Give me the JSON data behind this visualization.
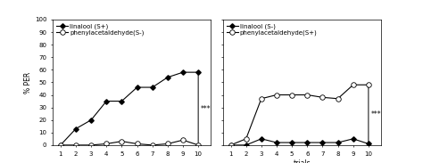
{
  "trials": [
    1,
    2,
    3,
    4,
    5,
    6,
    7,
    8,
    9,
    10
  ],
  "left_linalool": [
    0,
    13,
    20,
    35,
    35,
    46,
    46,
    54,
    58,
    58
  ],
  "left_phenyl": [
    0,
    0,
    0,
    1,
    3,
    1,
    0,
    1,
    4,
    0
  ],
  "right_linalool": [
    0,
    0,
    5,
    2,
    2,
    2,
    2,
    2,
    5,
    1
  ],
  "right_phenyl": [
    0,
    5,
    37,
    40,
    40,
    40,
    38,
    37,
    48,
    48
  ],
  "ylim": [
    0,
    100
  ],
  "yticks": [
    0,
    10,
    20,
    30,
    40,
    50,
    60,
    70,
    80,
    90,
    100
  ],
  "ylabel": "% PER",
  "xlabel": "trials",
  "left_legend1": "linalool (S+)",
  "left_legend2": "-○-phenylacetaldehyde(S-)",
  "right_legend1": "linalool (S-)",
  "right_legend2": "-○-phenylacetaldehyde(S+)",
  "star_text": "***",
  "bg_color": "#ffffff",
  "fontsize": 5.5,
  "tick_fontsize": 5.0,
  "legend_fontsize": 5.0
}
